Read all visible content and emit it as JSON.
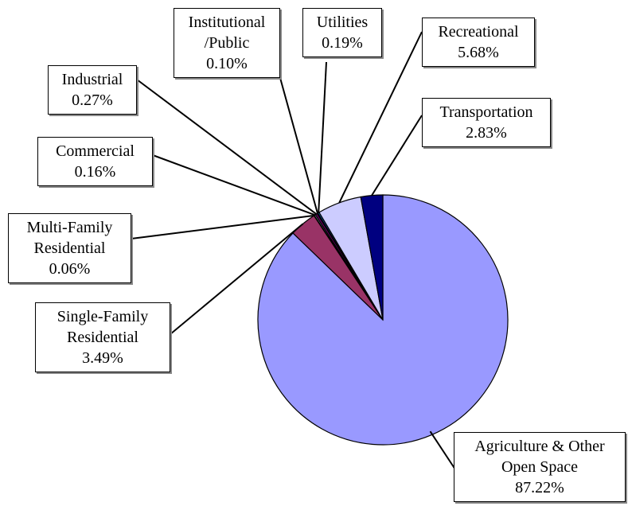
{
  "chart_data": {
    "type": "pie",
    "categories": [
      "Agriculture & Other Open Space",
      "Single-Family Residential",
      "Multi-Family Residential",
      "Commercial",
      "Industrial",
      "Institutional /Public",
      "Utilities",
      "Recreational",
      "Transportation"
    ],
    "values": [
      87.22,
      3.49,
      0.06,
      0.16,
      0.27,
      0.1,
      0.19,
      5.68,
      2.83
    ],
    "value_labels": [
      "87.22%",
      "3.49%",
      "0.06%",
      "0.16%",
      "0.27%",
      "0.10%",
      "0.19%",
      "5.68%",
      "2.83%"
    ],
    "colors": [
      "#9999ff",
      "#993366",
      "#ffffcc",
      "#ccffff",
      "#660066",
      "#ff8080",
      "#0066cc",
      "#ccccff",
      "#000080"
    ]
  }
}
